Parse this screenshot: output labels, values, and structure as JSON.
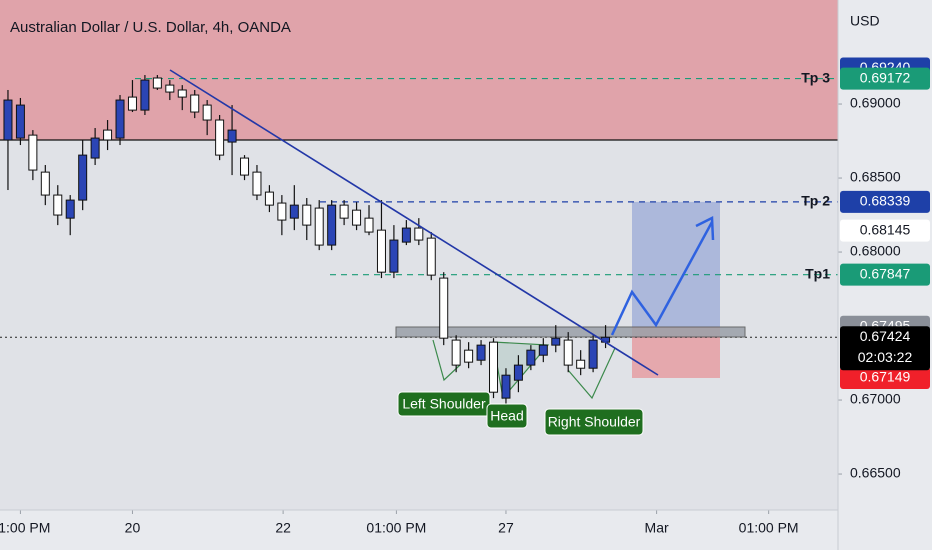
{
  "chart_data": {
    "type": "candlestick",
    "title": "Australian Dollar / U.S. Dollar, 4h, OANDA",
    "axis_unit": "USD",
    "up_color": "#2b45b5",
    "down_color": "#ffffff",
    "open": [
      0.68757,
      0.6877,
      0.6879,
      0.6854,
      0.68385,
      0.68229,
      0.68351,
      0.68635,
      0.68824,
      0.6877,
      0.69047,
      0.68959,
      0.69176,
      0.69128,
      0.69095,
      0.69061,
      0.68993,
      0.68892,
      0.68743,
      0.68635,
      0.6854,
      0.68405,
      0.68331,
      0.68229,
      0.68317,
      0.68297,
      0.68047,
      0.68317,
      0.68283,
      0.68229,
      0.68148,
      0.67864,
      0.68067,
      0.68162,
      0.68094,
      0.67824,
      0.67405,
      0.67337,
      0.67269,
      0.67391,
      0.67013,
      0.67134,
      0.67236,
      0.67303,
      0.67371,
      0.67405,
      0.67269,
      0.67215,
      0.67391
    ],
    "high": [
      0.69095,
      0.69041,
      0.68824,
      0.68588,
      0.68452,
      0.68385,
      0.68757,
      0.68838,
      0.68892,
      0.69061,
      0.69162,
      0.69196,
      0.69196,
      0.69162,
      0.69128,
      0.69095,
      0.69027,
      0.68926,
      0.68993,
      0.68655,
      0.68588,
      0.68452,
      0.68385,
      0.68452,
      0.68365,
      0.68351,
      0.68351,
      0.68351,
      0.68337,
      0.68317,
      0.68351,
      0.68182,
      0.68216,
      0.68229,
      0.68135,
      0.67864,
      0.67438,
      0.67391,
      0.67405,
      0.67418,
      0.67215,
      0.67303,
      0.67371,
      0.67418,
      0.67506,
      0.67459,
      0.67337,
      0.67438,
      0.67506
    ],
    "low": [
      0.68419,
      0.68723,
      0.68486,
      0.68317,
      0.68182,
      0.68114,
      0.68283,
      0.68588,
      0.68689,
      0.68723,
      0.68946,
      0.68926,
      0.69095,
      0.69027,
      0.68959,
      0.68905,
      0.6879,
      0.68621,
      0.6852,
      0.68486,
      0.68351,
      0.6827,
      0.68114,
      0.68148,
      0.68081,
      0.68013,
      0.68013,
      0.68182,
      0.68148,
      0.68114,
      0.67824,
      0.67824,
      0.68047,
      0.68047,
      0.6781,
      0.67371,
      0.67188,
      0.67215,
      0.67236,
      0.67013,
      0.66965,
      0.67053,
      0.67202,
      0.67256,
      0.67323,
      0.67188,
      0.67168,
      0.67188,
      0.67351
    ],
    "close": [
      0.69027,
      0.68993,
      0.68554,
      0.68385,
      0.6825,
      0.68351,
      0.68655,
      0.6877,
      0.68757,
      0.69027,
      0.68959,
      0.69162,
      0.69108,
      0.69081,
      0.69047,
      0.68946,
      0.68892,
      0.68655,
      0.68824,
      0.6852,
      0.68385,
      0.68317,
      0.68216,
      0.68317,
      0.68182,
      0.68047,
      0.68317,
      0.68229,
      0.68182,
      0.68135,
      0.67864,
      0.68081,
      0.68162,
      0.68081,
      0.67844,
      0.67418,
      0.67236,
      0.67256,
      0.67371,
      0.67053,
      0.67168,
      0.67236,
      0.67337,
      0.67371,
      0.67418,
      0.67236,
      0.67215,
      0.67405,
      0.67424
    ],
    "xlim": [
      -0.64,
      66.67
    ],
    "xticks": [
      {
        "value": 1,
        "label": "01:00 PM"
      },
      {
        "value": 10,
        "label": "20"
      },
      {
        "value": 22.1,
        "label": "22"
      },
      {
        "value": 31.2,
        "label": "01:00 PM"
      },
      {
        "value": 40,
        "label": "27"
      },
      {
        "value": 52.1,
        "label": "Mar"
      },
      {
        "value": 61.1,
        "label": "01:00 PM"
      }
    ],
    "ylim": [
      0.66257,
      0.69703
    ],
    "yticks": [
      {
        "value": 0.69,
        "label": "0.69000"
      },
      {
        "value": 0.685,
        "label": "0.68500"
      },
      {
        "value": 0.68,
        "label": "0.68000"
      },
      {
        "value": 0.67,
        "label": "0.67000"
      },
      {
        "value": 0.665,
        "label": "0.66500"
      }
    ],
    "resistance": 0.68757,
    "levels": [
      {
        "name": "Tp 3",
        "value": 0.69172,
        "color": "#1a9b77"
      },
      {
        "name": "Tp 2",
        "value": 0.68339,
        "color": "#1e40a8"
      },
      {
        "name": "Tp1",
        "value": 0.67847,
        "color": "#1a9b77"
      }
    ],
    "trade": {
      "entry": 0.67495,
      "target": 0.68339,
      "stop": 0.67149
    },
    "price_labels": [
      {
        "value": 0.6924,
        "label": "0.69240",
        "color": "#1e40a8"
      },
      {
        "value": 0.68145,
        "color": "#ffffff"
      }
    ],
    "countdown": "02:03:22",
    "annotations": [
      "Left Shoulder",
      "Head",
      "Right Shoulder"
    ]
  }
}
